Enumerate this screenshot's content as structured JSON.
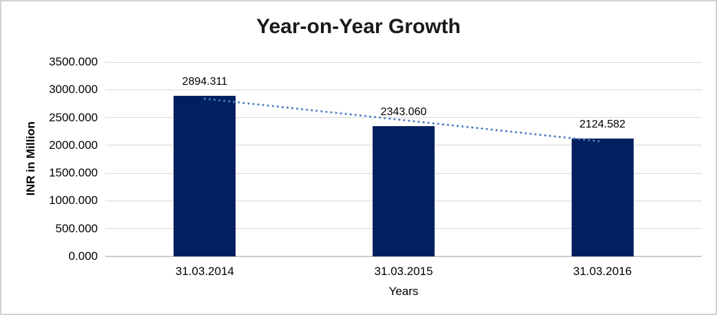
{
  "frame": {
    "background": "#ffffff",
    "border_color": "#d2d2d2"
  },
  "chart_data": {
    "type": "bar",
    "title": "Year-on-Year Growth",
    "categories": [
      "31.03.2014",
      "31.03.2015",
      "31.03.2016"
    ],
    "values": [
      2894.311,
      2343.06,
      2124.582
    ],
    "data_labels": [
      "2894.311",
      "2343.060",
      "2124.582"
    ],
    "xlabel": "Years",
    "ylabel": "INR in Million",
    "ylim": [
      0,
      3500
    ],
    "ytick_interval": 500,
    "ytick_labels": [
      "0.000",
      "500.000",
      "1000.000",
      "1500.000",
      "2000.000",
      "2500.000",
      "3000.000",
      "3500.000"
    ],
    "grid": true,
    "legend": "none",
    "bar_color": "#002060",
    "trendline": {
      "type": "linear",
      "style": "dotted",
      "color": "#4a80c4"
    },
    "gridline_color": "#d9d9d9",
    "axis_line_color": "#cccccc",
    "text_color": "#000000",
    "title_color": "#1a1a1a"
  }
}
